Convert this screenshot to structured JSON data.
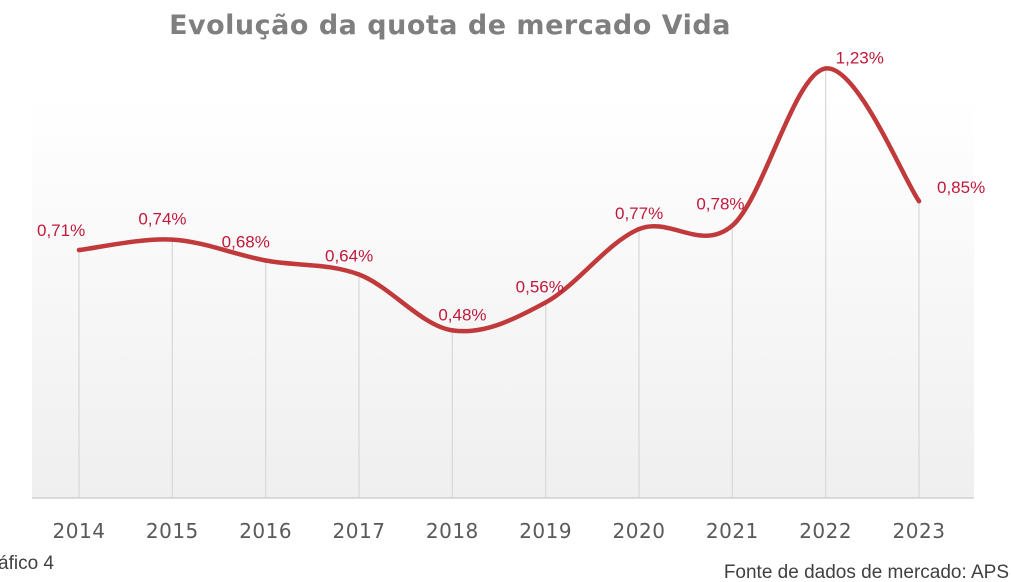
{
  "page": {
    "caption_left": "áfico 4",
    "caption_right": "Fonte de dados de mercado: APS"
  },
  "chart_data": {
    "type": "line",
    "title": "Evolução da quota de mercado Vida",
    "xlabel": "",
    "ylabel": "",
    "categories": [
      "2014",
      "2015",
      "2016",
      "2017",
      "2018",
      "2019",
      "2020",
      "2021",
      "2022",
      "2023"
    ],
    "series": [
      {
        "values": [
          0.71,
          0.74,
          0.68,
          0.64,
          0.48,
          0.56,
          0.77,
          0.78,
          1.23,
          0.85
        ],
        "labels": [
          "0,71%",
          "0,74%",
          "0,68%",
          "0,64%",
          "0,48%",
          "0,56%",
          "0,77%",
          "0,78%",
          "1,23%",
          "0,85%"
        ],
        "color": "#c0393b"
      }
    ],
    "ylim": [
      0,
      1.3
    ],
    "grid": "vertical",
    "smooth": true,
    "colors": {
      "line": "#c0393b",
      "label": "#c0193b",
      "grid": "#d9d9d9",
      "axis": "#d0d0d0",
      "tick": "#595959",
      "title": "#7f7f7f"
    }
  }
}
